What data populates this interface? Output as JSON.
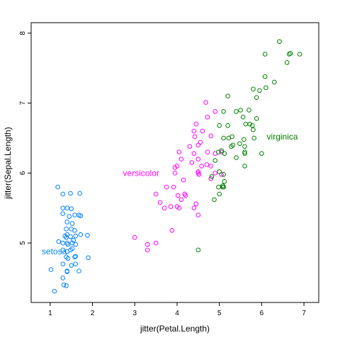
{
  "chart_data": {
    "type": "scatter",
    "xlabel": "jitter(Petal.Length)",
    "ylabel": "jitter(Sepal.Length)",
    "xlim": [
      0.55,
      7.35
    ],
    "ylim": [
      4.15,
      8.15
    ],
    "x_ticks": [
      1,
      2,
      3,
      4,
      5,
      6,
      7
    ],
    "y_ticks": [
      5,
      6,
      7,
      8
    ],
    "grid": false,
    "legend": "none",
    "series": [
      {
        "name": "setosa",
        "color": "#0080ff",
        "label_position": [
          0.8,
          4.88
        ],
        "points": [
          [
            1.18,
            5.8
          ],
          [
            1.3,
            5.7
          ],
          [
            1.48,
            5.71
          ],
          [
            1.7,
            5.71
          ],
          [
            1.3,
            5.5
          ],
          [
            1.4,
            5.5
          ],
          [
            1.5,
            5.49
          ],
          [
            1.3,
            5.42
          ],
          [
            1.58,
            5.4
          ],
          [
            1.68,
            5.4
          ],
          [
            1.72,
            5.39
          ],
          [
            1.45,
            5.38
          ],
          [
            1.4,
            5.3
          ],
          [
            1.52,
            5.28
          ],
          [
            1.5,
            5.2
          ],
          [
            1.38,
            5.2
          ],
          [
            1.58,
            5.18
          ],
          [
            1.35,
            5.1
          ],
          [
            1.4,
            5.12
          ],
          [
            1.48,
            5.09
          ],
          [
            1.6,
            5.1
          ],
          [
            1.72,
            5.12
          ],
          [
            1.88,
            5.11
          ],
          [
            1.38,
            5.08
          ],
          [
            1.55,
            5.04
          ],
          [
            1.2,
            5.02
          ],
          [
            1.3,
            5.0
          ],
          [
            1.4,
            5.0
          ],
          [
            1.52,
            5.0
          ],
          [
            1.6,
            4.98
          ],
          [
            1.42,
            4.98
          ],
          [
            1.3,
            4.9
          ],
          [
            1.48,
            4.9
          ],
          [
            1.4,
            4.88
          ],
          [
            1.52,
            4.92
          ],
          [
            1.38,
            4.8
          ],
          [
            1.58,
            4.8
          ],
          [
            1.6,
            4.81
          ],
          [
            1.9,
            4.79
          ],
          [
            1.42,
            4.78
          ],
          [
            1.3,
            4.7
          ],
          [
            1.6,
            4.7
          ],
          [
            1.5,
            4.68
          ],
          [
            1.4,
            4.6
          ],
          [
            1.4,
            4.59
          ],
          [
            1.68,
            4.6
          ],
          [
            1.02,
            4.62
          ],
          [
            1.3,
            4.5
          ],
          [
            1.32,
            4.4
          ],
          [
            1.38,
            4.39
          ],
          [
            1.1,
            4.31
          ]
        ]
      },
      {
        "name": "versicolor",
        "color": "#ff00ff",
        "label_position": [
          2.72,
          6.0
        ],
        "points": [
          [
            4.68,
            7.01
          ],
          [
            4.9,
            6.88
          ],
          [
            4.45,
            6.7
          ],
          [
            4.72,
            6.8
          ],
          [
            4.4,
            6.6
          ],
          [
            4.6,
            6.6
          ],
          [
            4.42,
            6.52
          ],
          [
            4.8,
            6.53
          ],
          [
            4.5,
            6.4
          ],
          [
            4.55,
            6.44
          ],
          [
            4.3,
            6.38
          ],
          [
            4.05,
            6.3
          ],
          [
            4.4,
            6.28
          ],
          [
            4.72,
            6.3
          ],
          [
            4.9,
            6.28
          ],
          [
            5.05,
            6.3
          ],
          [
            4.1,
            6.2
          ],
          [
            4.5,
            6.2
          ],
          [
            4.35,
            6.15
          ],
          [
            4.0,
            6.1
          ],
          [
            4.58,
            6.1
          ],
          [
            4.7,
            6.12
          ],
          [
            4.8,
            6.1
          ],
          [
            4.9,
            6.0
          ],
          [
            5.05,
            5.98
          ],
          [
            4.5,
            6.02
          ],
          [
            3.95,
            6.08
          ],
          [
            3.95,
            6.0
          ],
          [
            4.52,
            5.98
          ],
          [
            4.5,
            6.0
          ],
          [
            4.15,
            5.9
          ],
          [
            4.8,
            5.92
          ],
          [
            3.5,
            5.7
          ],
          [
            3.75,
            5.8
          ],
          [
            3.92,
            5.8
          ],
          [
            4.18,
            5.7
          ],
          [
            4.02,
            5.68
          ],
          [
            4.2,
            5.68
          ],
          [
            3.6,
            5.58
          ],
          [
            4.1,
            5.62
          ],
          [
            4.05,
            5.5
          ],
          [
            4.45,
            5.56
          ],
          [
            3.7,
            5.5
          ],
          [
            3.85,
            5.52
          ],
          [
            4.0,
            5.52
          ],
          [
            4.4,
            5.5
          ],
          [
            4.5,
            5.4
          ],
          [
            3.88,
            5.18
          ],
          [
            3.0,
            5.08
          ],
          [
            3.3,
            4.98
          ],
          [
            3.5,
            5.0
          ],
          [
            3.3,
            4.9
          ]
        ]
      },
      {
        "name": "virginica",
        "color": "#008000",
        "label_position": [
          6.12,
          6.52
        ],
        "points": [
          [
            6.42,
            7.88
          ],
          [
            6.08,
            7.7
          ],
          [
            6.65,
            7.7
          ],
          [
            6.68,
            7.71
          ],
          [
            6.9,
            7.7
          ],
          [
            6.6,
            7.58
          ],
          [
            6.08,
            7.38
          ],
          [
            6.3,
            7.3
          ],
          [
            6.1,
            7.22
          ],
          [
            5.8,
            7.2
          ],
          [
            5.95,
            7.18
          ],
          [
            5.88,
            7.08
          ],
          [
            5.2,
            7.1
          ],
          [
            5.1,
            6.88
          ],
          [
            5.5,
            6.9
          ],
          [
            5.7,
            6.9
          ],
          [
            5.4,
            6.88
          ],
          [
            5.56,
            6.8
          ],
          [
            5.88,
            6.78
          ],
          [
            5.62,
            6.7
          ],
          [
            5.72,
            6.7
          ],
          [
            5.78,
            6.68
          ],
          [
            5.8,
            6.62
          ],
          [
            5.2,
            6.68
          ],
          [
            5.0,
            6.68
          ],
          [
            5.58,
            6.48
          ],
          [
            5.3,
            6.52
          ],
          [
            5.1,
            6.5
          ],
          [
            5.22,
            6.5
          ],
          [
            5.48,
            6.42
          ],
          [
            5.6,
            6.38
          ],
          [
            5.32,
            6.4
          ],
          [
            5.28,
            6.38
          ],
          [
            5.82,
            6.5
          ],
          [
            5.05,
            6.32
          ],
          [
            4.98,
            6.3
          ],
          [
            5.12,
            6.28
          ],
          [
            5.6,
            6.3
          ],
          [
            5.6,
            6.28
          ],
          [
            6.0,
            6.28
          ],
          [
            5.4,
            6.22
          ],
          [
            4.9,
            6.18
          ],
          [
            5.0,
            6.02
          ],
          [
            5.6,
            6.1
          ],
          [
            5.1,
            5.98
          ],
          [
            4.82,
            5.95
          ],
          [
            4.98,
            5.8
          ],
          [
            5.12,
            5.88
          ],
          [
            5.08,
            5.82
          ],
          [
            5.1,
            5.8
          ],
          [
            5.08,
            5.8
          ],
          [
            5.0,
            5.7
          ],
          [
            4.88,
            5.62
          ],
          [
            4.5,
            4.9
          ]
        ]
      }
    ]
  }
}
